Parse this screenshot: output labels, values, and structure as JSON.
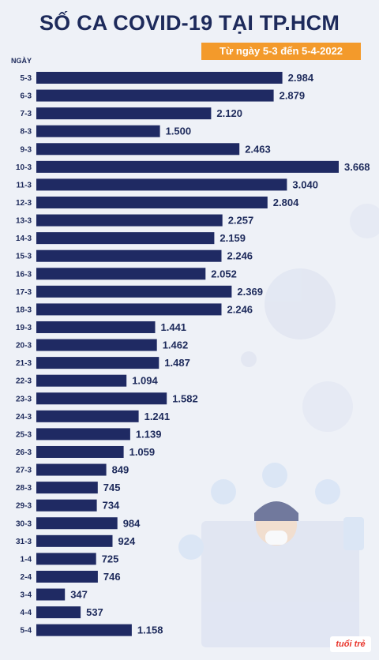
{
  "header": {
    "title": "SỐ CA COVID-19 TẠI TP.HCM",
    "subtitle": "Từ ngày 5-3 đến 5-4-2022"
  },
  "logo_text": "tuổi trẻ",
  "colors": {
    "bar": "#1f2a63",
    "accent": "#f39a2b",
    "text": "#1d2a5b",
    "background": "#eef1f7"
  },
  "chart_data": {
    "type": "bar",
    "orientation": "horizontal",
    "title": "SỐ CA COVID-19 TẠI TP.HCM",
    "subtitle": "Từ ngày 5-3 đến 5-4-2022",
    "ylabel": "NGÀY",
    "xlabel": "",
    "grid": false,
    "categories": [
      "5-3",
      "6-3",
      "7-3",
      "8-3",
      "9-3",
      "10-3",
      "11-3",
      "12-3",
      "13-3",
      "14-3",
      "15-3",
      "16-3",
      "17-3",
      "18-3",
      "19-3",
      "20-3",
      "21-3",
      "22-3",
      "23-3",
      "24-3",
      "25-3",
      "26-3",
      "27-3",
      "28-3",
      "29-3",
      "30-3",
      "31-3",
      "1-4",
      "2-4",
      "3-4",
      "4-4",
      "5-4"
    ],
    "values": [
      2984,
      2879,
      2120,
      1500,
      2463,
      3668,
      3040,
      2804,
      2257,
      2159,
      2246,
      2052,
      2369,
      2246,
      1441,
      1462,
      1487,
      1094,
      1582,
      1241,
      1139,
      1059,
      849,
      745,
      734,
      984,
      924,
      725,
      746,
      347,
      537,
      1158
    ],
    "value_labels": [
      "2.984",
      "2.879",
      "2.120",
      "1.500",
      "2.463",
      "3.668",
      "3.040",
      "2.804",
      "2.257",
      "2.159",
      "2.246",
      "2.052",
      "2.369",
      "2.246",
      "1.441",
      "1.462",
      "1.487",
      "1.094",
      "1.582",
      "1.241",
      "1.139",
      "1.059",
      "849",
      "745",
      "734",
      "984",
      "924",
      "725",
      "746",
      "347",
      "537",
      "1.158"
    ],
    "xlim": [
      0,
      3668
    ]
  }
}
